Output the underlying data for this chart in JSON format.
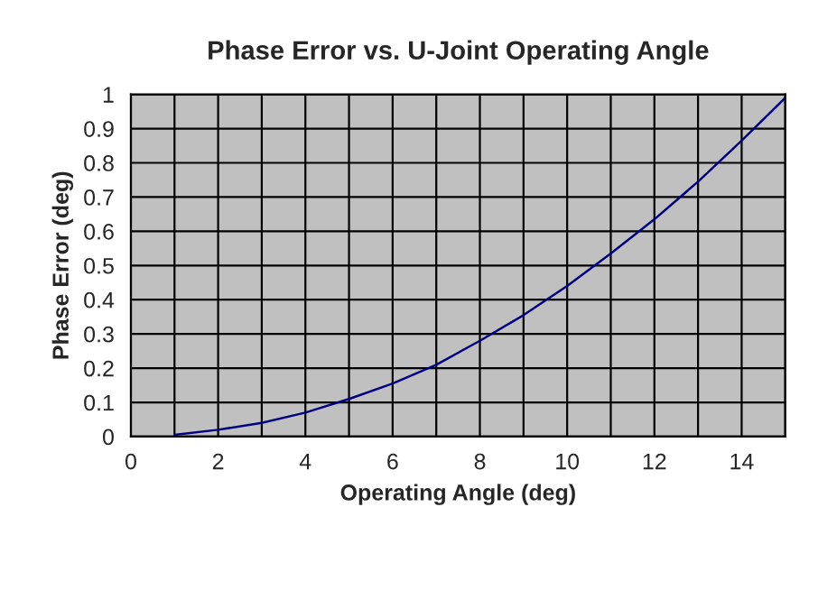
{
  "chart_data": {
    "type": "line",
    "title": "Phase Error vs. U-Joint Operating Angle",
    "xlabel": "Operating Angle (deg)",
    "ylabel": "Phase Error (deg)",
    "x": [
      1,
      2,
      3,
      4,
      5,
      6,
      7,
      8,
      9,
      10,
      11,
      12,
      13,
      14,
      15
    ],
    "series": [
      {
        "color": "#000080",
        "values": [
          0.005,
          0.02,
          0.04,
          0.07,
          0.11,
          0.155,
          0.21,
          0.28,
          0.355,
          0.44,
          0.535,
          0.635,
          0.745,
          0.865,
          0.99
        ]
      }
    ],
    "xlim": [
      0,
      15
    ],
    "ylim": [
      0,
      1
    ],
    "xticks": [
      0,
      {
        "value": 1,
        "label": null
      },
      2,
      {
        "value": 3,
        "label": null
      },
      4,
      {
        "value": 5,
        "label": null
      },
      6,
      {
        "value": 7,
        "label": null
      },
      8,
      {
        "value": 9,
        "label": null
      },
      10,
      {
        "value": 11,
        "label": null
      },
      12,
      {
        "value": 13,
        "label": null
      },
      14,
      {
        "value": 15,
        "label": null
      }
    ],
    "yticks": [
      0,
      0.1,
      0.2,
      0.3,
      0.4,
      0.5,
      0.6,
      0.7,
      0.8,
      0.9,
      1
    ],
    "grid": true,
    "marker": "none",
    "line_style": "solid"
  }
}
